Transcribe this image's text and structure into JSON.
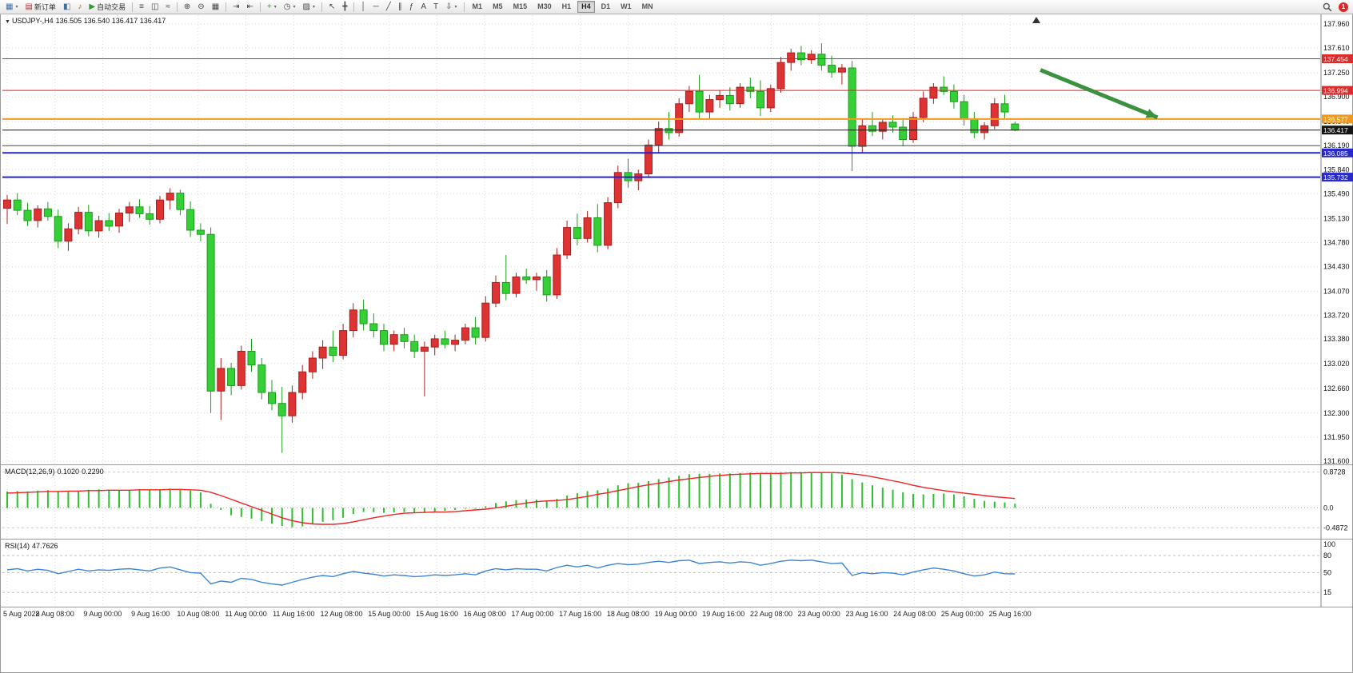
{
  "toolbar": {
    "notification_count": "1",
    "timeframes": [
      "M1",
      "M5",
      "M15",
      "M30",
      "H1",
      "H4",
      "D1",
      "W1",
      "MN"
    ],
    "active_timeframe": "H4",
    "icon_groups": [
      {
        "items": [
          {
            "name": "new-chart",
            "glyph": "▦",
            "caret": true,
            "glyph_color": "#3a6ea5"
          },
          {
            "name": "new-order",
            "glyph": "▤",
            "label": "新订单",
            "glyph_color": "#b03030"
          },
          {
            "name": "profiles",
            "glyph": "◧",
            "glyph_color": "#3a6ea5"
          },
          {
            "name": "alerts",
            "glyph": "♪",
            "glyph_color": "#996515"
          },
          {
            "name": "autotrade",
            "glyph": "▶",
            "label": "自动交易",
            "glyph_color": "#2e9e2e"
          }
        ]
      },
      {
        "items": [
          {
            "name": "bar-chart",
            "glyph": "≡"
          },
          {
            "name": "candlestick-chart",
            "glyph": "◫"
          },
          {
            "name": "line-chart",
            "glyph": "≈"
          }
        ]
      },
      {
        "items": [
          {
            "name": "zoom-in",
            "glyph": "⊕"
          },
          {
            "name": "zoom-out",
            "glyph": "⊖"
          },
          {
            "name": "tile-windows",
            "glyph": "▦"
          }
        ]
      },
      {
        "items": [
          {
            "name": "auto-scroll",
            "glyph": "⇥"
          },
          {
            "name": "chart-shift",
            "glyph": "⇤"
          }
        ]
      },
      {
        "items": [
          {
            "name": "indicators",
            "glyph": "+",
            "caret": true,
            "glyph_color": "#2e9e2e"
          },
          {
            "name": "periods",
            "glyph": "◷",
            "caret": true
          },
          {
            "name": "templates",
            "glyph": "▨",
            "caret": true
          }
        ]
      },
      {
        "items": [
          {
            "name": "cursor",
            "glyph": "↖"
          },
          {
            "name": "crosshair",
            "glyph": "╋"
          }
        ]
      },
      {
        "items": [
          {
            "name": "vertical-line",
            "glyph": "│"
          },
          {
            "name": "horizontal-line",
            "glyph": "─"
          },
          {
            "name": "trendline",
            "glyph": "╱"
          },
          {
            "name": "equidistant-channel",
            "glyph": "∥"
          },
          {
            "name": "fibonacci",
            "glyph": "ƒ"
          },
          {
            "name": "text",
            "glyph": "A"
          },
          {
            "name": "text-label",
            "glyph": "T"
          },
          {
            "name": "arrows-tool",
            "glyph": "⇩",
            "caret": true
          }
        ]
      }
    ]
  },
  "chart": {
    "one_click_glyph": "▼",
    "symbol_period": "USDJPY-,H4",
    "ohlc": "136.505 136.540 136.417 136.417"
  },
  "chart_data": {
    "type": "candlestick",
    "symbol": "USDJPY-",
    "period": "H4",
    "style": {
      "up": "#dd3333",
      "up_stroke": "#a81f1f",
      "down": "#37cf37",
      "down_stroke": "#1a9c1a",
      "grid": "#d9d9d9",
      "background": "#ffffff"
    },
    "price_ticks": [
      "137.960",
      "137.610",
      "137.250",
      "136.900",
      "136.540",
      "136.190",
      "135.840",
      "135.490",
      "135.130",
      "134.780",
      "134.430",
      "134.070",
      "133.720",
      "133.380",
      "133.020",
      "132.660",
      "132.300",
      "131.950",
      "131.600"
    ],
    "time_labels": [
      "5 Aug 2022",
      "8 Aug 08:00",
      "9 Aug 00:00",
      "9 Aug 16:00",
      "10 Aug 08:00",
      "11 Aug 00:00",
      "11 Aug 16:00",
      "12 Aug 08:00",
      "15 Aug 00:00",
      "15 Aug 16:00",
      "16 Aug 08:00",
      "17 Aug 00:00",
      "17 Aug 16:00",
      "18 Aug 08:00",
      "19 Aug 00:00",
      "19 Aug 16:00",
      "22 Aug 08:00",
      "23 Aug 00:00",
      "23 Aug 16:00",
      "24 Aug 08:00",
      "25 Aug 00:00",
      "25 Aug 16:00"
    ],
    "hlines": [
      {
        "price": 137.454,
        "color": "#e82020",
        "width": 1,
        "badge": "137.454",
        "badge_bg": "#dd2b2b"
      },
      {
        "price": 136.994,
        "color": "#e82020",
        "width": 1,
        "badge": "136.994",
        "badge_bg": "#dd2b2b"
      },
      {
        "price": 136.577,
        "color": "#f59a23",
        "width": 2,
        "badge": "136.577",
        "badge_bg": "#ef9a1d"
      },
      {
        "price": 136.417,
        "color": "#1a1a1a",
        "width": 1,
        "badge": "136.417",
        "badge_bg": "#151515"
      },
      {
        "price": 136.19,
        "color": "#4a4a4a",
        "width": 1,
        "badge": null,
        "badge_bg": null
      },
      {
        "price": 136.085,
        "color": "#2323d6",
        "width": 2,
        "badge": "136.085",
        "badge_bg": "#2828cc"
      },
      {
        "price": 135.732,
        "color": "#2323d6",
        "width": 2,
        "badge": "135.732",
        "badge_bg": "#2828cc"
      }
    ],
    "current_price": 136.417,
    "trend_arrow": {
      "x_start_candle": 101.5,
      "price_start": 137.29,
      "x_end_candle": 113,
      "price_end": 136.6,
      "color": "#3c9140"
    },
    "candles": [
      [
        135.28,
        135.47,
        135.05,
        135.4
      ],
      [
        135.4,
        135.5,
        135.18,
        135.25
      ],
      [
        135.25,
        135.36,
        135.02,
        135.1
      ],
      [
        135.1,
        135.32,
        135.0,
        135.27
      ],
      [
        135.27,
        135.37,
        135.1,
        135.16
      ],
      [
        135.16,
        135.26,
        134.7,
        134.8
      ],
      [
        134.8,
        135.06,
        134.66,
        134.98
      ],
      [
        134.98,
        135.3,
        134.9,
        135.22
      ],
      [
        135.22,
        135.33,
        134.87,
        134.95
      ],
      [
        134.95,
        135.17,
        134.85,
        135.1
      ],
      [
        135.1,
        135.21,
        134.95,
        135.02
      ],
      [
        135.02,
        135.27,
        134.92,
        135.21
      ],
      [
        135.21,
        135.37,
        135.08,
        135.3
      ],
      [
        135.3,
        135.41,
        135.14,
        135.2
      ],
      [
        135.2,
        135.31,
        135.04,
        135.12
      ],
      [
        135.12,
        135.46,
        135.06,
        135.4
      ],
      [
        135.4,
        135.57,
        135.26,
        135.5
      ],
      [
        135.5,
        135.55,
        135.18,
        135.26
      ],
      [
        135.26,
        135.38,
        134.86,
        134.96
      ],
      [
        134.96,
        135.06,
        134.8,
        134.9
      ],
      [
        134.9,
        135.0,
        132.3,
        132.62
      ],
      [
        132.62,
        133.1,
        132.2,
        132.95
      ],
      [
        132.95,
        133.03,
        132.56,
        132.7
      ],
      [
        132.7,
        133.28,
        132.64,
        133.2
      ],
      [
        133.2,
        133.38,
        132.9,
        133.0
      ],
      [
        133.0,
        133.1,
        132.5,
        132.6
      ],
      [
        132.6,
        132.78,
        132.34,
        132.44
      ],
      [
        132.44,
        132.68,
        131.72,
        132.26
      ],
      [
        132.26,
        132.7,
        132.16,
        132.6
      ],
      [
        132.6,
        133.0,
        132.5,
        132.9
      ],
      [
        132.9,
        133.2,
        132.8,
        133.1
      ],
      [
        133.1,
        133.36,
        132.94,
        133.26
      ],
      [
        133.26,
        133.5,
        133.04,
        133.14
      ],
      [
        133.14,
        133.6,
        133.08,
        133.5
      ],
      [
        133.5,
        133.9,
        133.4,
        133.8
      ],
      [
        133.8,
        133.95,
        133.5,
        133.6
      ],
      [
        133.6,
        133.75,
        133.4,
        133.5
      ],
      [
        133.5,
        133.6,
        133.2,
        133.3
      ],
      [
        133.3,
        133.5,
        133.2,
        133.44
      ],
      [
        133.44,
        133.54,
        133.24,
        133.34
      ],
      [
        133.34,
        133.44,
        133.1,
        133.2
      ],
      [
        133.2,
        133.34,
        132.54,
        133.26
      ],
      [
        133.26,
        133.44,
        133.14,
        133.38
      ],
      [
        133.38,
        133.5,
        133.24,
        133.3
      ],
      [
        133.3,
        133.44,
        133.2,
        133.36
      ],
      [
        133.36,
        133.6,
        133.3,
        133.54
      ],
      [
        133.54,
        133.7,
        133.3,
        133.4
      ],
      [
        133.4,
        134.0,
        133.34,
        133.9
      ],
      [
        133.9,
        134.3,
        133.84,
        134.2
      ],
      [
        134.2,
        134.6,
        133.94,
        134.04
      ],
      [
        134.04,
        134.34,
        133.98,
        134.28
      ],
      [
        134.28,
        134.4,
        134.18,
        134.24
      ],
      [
        134.24,
        134.34,
        134.08,
        134.28
      ],
      [
        134.28,
        134.38,
        133.92,
        134.02
      ],
      [
        134.02,
        134.7,
        133.96,
        134.6
      ],
      [
        134.6,
        135.1,
        134.54,
        135.0
      ],
      [
        135.0,
        135.2,
        134.74,
        134.84
      ],
      [
        134.84,
        135.24,
        134.78,
        135.14
      ],
      [
        135.14,
        135.34,
        134.64,
        134.74
      ],
      [
        134.74,
        135.44,
        134.68,
        135.36
      ],
      [
        135.36,
        135.9,
        135.28,
        135.8
      ],
      [
        135.8,
        136.0,
        135.58,
        135.68
      ],
      [
        135.68,
        135.84,
        135.54,
        135.78
      ],
      [
        135.78,
        136.28,
        135.72,
        136.2
      ],
      [
        136.2,
        136.54,
        136.08,
        136.44
      ],
      [
        136.44,
        136.68,
        136.28,
        136.38
      ],
      [
        136.38,
        136.88,
        136.32,
        136.8
      ],
      [
        136.8,
        137.06,
        136.68,
        136.98
      ],
      [
        136.98,
        137.22,
        136.58,
        136.68
      ],
      [
        136.68,
        136.93,
        136.58,
        136.86
      ],
      [
        136.86,
        137.0,
        136.74,
        136.92
      ],
      [
        136.92,
        137.04,
        136.7,
        136.8
      ],
      [
        136.8,
        137.1,
        136.74,
        137.04
      ],
      [
        137.04,
        137.18,
        136.88,
        136.98
      ],
      [
        136.98,
        137.14,
        136.62,
        136.74
      ],
      [
        136.74,
        137.08,
        136.68,
        137.02
      ],
      [
        137.02,
        137.48,
        136.96,
        137.4
      ],
      [
        137.4,
        137.6,
        137.28,
        137.54
      ],
      [
        137.54,
        137.64,
        137.36,
        137.44
      ],
      [
        137.44,
        137.58,
        137.38,
        137.52
      ],
      [
        137.52,
        137.68,
        137.28,
        137.36
      ],
      [
        137.36,
        137.5,
        137.18,
        137.26
      ],
      [
        137.26,
        137.38,
        137.08,
        137.32
      ],
      [
        137.32,
        137.42,
        135.82,
        136.18
      ],
      [
        136.18,
        136.58,
        136.08,
        136.48
      ],
      [
        136.48,
        136.68,
        136.33,
        136.4
      ],
      [
        136.4,
        136.58,
        136.28,
        136.53
      ],
      [
        136.53,
        136.63,
        136.38,
        136.46
      ],
      [
        136.46,
        136.58,
        136.18,
        136.28
      ],
      [
        136.28,
        136.68,
        136.23,
        136.6
      ],
      [
        136.6,
        136.98,
        136.53,
        136.88
      ],
      [
        136.88,
        137.1,
        136.8,
        137.04
      ],
      [
        137.04,
        137.2,
        136.93,
        136.98
      ],
      [
        136.98,
        137.08,
        136.73,
        136.83
      ],
      [
        136.83,
        136.93,
        136.48,
        136.58
      ],
      [
        136.58,
        136.68,
        136.3,
        136.38
      ],
      [
        136.38,
        136.53,
        136.28,
        136.48
      ],
      [
        136.48,
        136.88,
        136.43,
        136.8
      ],
      [
        136.8,
        136.93,
        136.58,
        136.68
      ],
      [
        136.505,
        136.54,
        136.4,
        136.417
      ]
    ],
    "indicators": {
      "macd": {
        "label": "MACD(12,26,9)",
        "value_main": "0.1020",
        "value_signal": "0.2290",
        "scale_max": "0.8728",
        "scale_zero": "0.0",
        "scale_min": "-0.4872",
        "histogram_color": "#2fbf2f",
        "signal_color": "#f02222",
        "histogram": [
          0.4,
          0.41,
          0.4,
          0.42,
          0.43,
          0.41,
          0.4,
          0.42,
          0.44,
          0.45,
          0.44,
          0.43,
          0.44,
          0.45,
          0.44,
          0.45,
          0.47,
          0.46,
          0.42,
          0.38,
          0.1,
          -0.05,
          -0.18,
          -0.22,
          -0.26,
          -0.32,
          -0.38,
          -0.44,
          -0.47,
          -0.45,
          -0.4,
          -0.34,
          -0.3,
          -0.24,
          -0.15,
          -0.1,
          -0.1,
          -0.12,
          -0.11,
          -0.1,
          -0.11,
          -0.12,
          -0.09,
          -0.07,
          -0.05,
          -0.02,
          -0.02,
          0.04,
          0.12,
          0.16,
          0.19,
          0.2,
          0.2,
          0.18,
          0.22,
          0.3,
          0.36,
          0.41,
          0.43,
          0.47,
          0.55,
          0.6,
          0.61,
          0.65,
          0.7,
          0.74,
          0.78,
          0.82,
          0.83,
          0.83,
          0.84,
          0.84,
          0.85,
          0.86,
          0.84,
          0.84,
          0.86,
          0.87,
          0.872,
          0.87,
          0.86,
          0.84,
          0.81,
          0.7,
          0.62,
          0.55,
          0.49,
          0.44,
          0.38,
          0.34,
          0.33,
          0.34,
          0.35,
          0.33,
          0.28,
          0.22,
          0.17,
          0.15,
          0.13,
          0.102
        ],
        "signal": [
          0.36,
          0.37,
          0.38,
          0.39,
          0.4,
          0.4,
          0.41,
          0.41,
          0.42,
          0.42,
          0.43,
          0.43,
          0.43,
          0.44,
          0.44,
          0.44,
          0.45,
          0.45,
          0.44,
          0.43,
          0.38,
          0.3,
          0.21,
          0.12,
          0.03,
          -0.06,
          -0.15,
          -0.24,
          -0.31,
          -0.36,
          -0.39,
          -0.4,
          -0.4,
          -0.38,
          -0.34,
          -0.29,
          -0.24,
          -0.2,
          -0.16,
          -0.13,
          -0.12,
          -0.11,
          -0.1,
          -0.1,
          -0.09,
          -0.07,
          -0.05,
          -0.03,
          0.0,
          0.04,
          0.08,
          0.12,
          0.15,
          0.17,
          0.18,
          0.2,
          0.24,
          0.28,
          0.33,
          0.37,
          0.42,
          0.47,
          0.52,
          0.56,
          0.6,
          0.64,
          0.68,
          0.71,
          0.74,
          0.77,
          0.79,
          0.81,
          0.82,
          0.83,
          0.84,
          0.84,
          0.84,
          0.85,
          0.85,
          0.86,
          0.86,
          0.86,
          0.85,
          0.83,
          0.8,
          0.76,
          0.71,
          0.66,
          0.61,
          0.55,
          0.5,
          0.46,
          0.42,
          0.39,
          0.36,
          0.33,
          0.3,
          0.27,
          0.25,
          0.229
        ]
      },
      "rsi": {
        "label": "RSI(14)",
        "value": "47.7626",
        "line_color": "#3d85d6",
        "levels": [
          "100",
          "80",
          "50",
          "15"
        ],
        "series": [
          55,
          57,
          53,
          56,
          54,
          48,
          52,
          56,
          53,
          55,
          54,
          56,
          57,
          55,
          53,
          58,
          60,
          55,
          50,
          49,
          30,
          35,
          33,
          40,
          38,
          33,
          30,
          28,
          33,
          38,
          42,
          45,
          43,
          48,
          52,
          49,
          47,
          44,
          46,
          45,
          43,
          44,
          46,
          45,
          46,
          48,
          46,
          53,
          57,
          55,
          57,
          56,
          56,
          53,
          59,
          63,
          60,
          63,
          58,
          63,
          66,
          64,
          65,
          68,
          70,
          68,
          71,
          72,
          66,
          68,
          69,
          67,
          69,
          68,
          63,
          66,
          70,
          72,
          71,
          72,
          69,
          66,
          67,
          45,
          50,
          48,
          50,
          49,
          46,
          51,
          55,
          58,
          56,
          53,
          48,
          44,
          46,
          51,
          48,
          47.8
        ]
      }
    }
  }
}
